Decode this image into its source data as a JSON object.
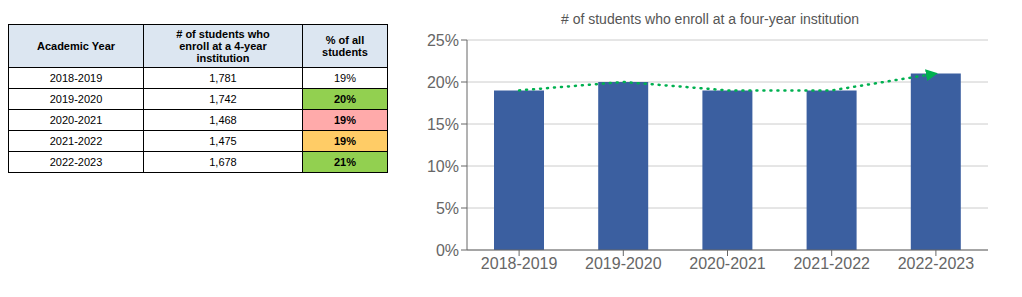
{
  "chart_data": [
    {
      "type": "table",
      "columns": [
        "Academic Year",
        "# of students who\nenroll at a 4-year\ninstitution",
        "% of all\nstudents"
      ],
      "rows": [
        [
          "2018-2019",
          "1,781",
          "19%"
        ],
        [
          "2019-2020",
          "1,742",
          "20%"
        ],
        [
          "2020-2021",
          "1,468",
          "19%"
        ],
        [
          "2021-2022",
          "1,475",
          "19%"
        ],
        [
          "2022-2023",
          "1,678",
          "21%"
        ]
      ],
      "color": "#dce6f1",
      "colors": [
        "#ffffff",
        "#92d050",
        "#ffaaaa",
        "#ffcc66",
        "#92d050"
      ]
    },
    {
      "type": "bar",
      "title": "# of students who enroll at a four-year institution",
      "categories": [
        "2018-2019",
        "2019-2020",
        "2020-2021",
        "2021-2022",
        "2022-2023"
      ],
      "series": [
        {
          "type": "bar",
          "color": "#3b5fa0",
          "values": [
            0.19,
            0.2,
            0.19,
            0.19,
            0.21
          ]
        },
        {
          "type": "line",
          "color": "#00b050",
          "line_style": "dotted",
          "marker": "arrow",
          "values": [
            0.19,
            0.2,
            0.19,
            0.19,
            0.21
          ]
        }
      ],
      "ylim": [
        0,
        0.25
      ],
      "yticks": [
        {
          "value": 0,
          "label": "0%"
        },
        {
          "value": 0.05,
          "label": "5%"
        },
        {
          "value": 0.1,
          "label": "10%"
        },
        {
          "value": 0.15,
          "label": "15%"
        },
        {
          "value": 0.2,
          "label": "20%"
        },
        {
          "value": 0.25,
          "label": "25%"
        }
      ],
      "grid": true
    }
  ]
}
